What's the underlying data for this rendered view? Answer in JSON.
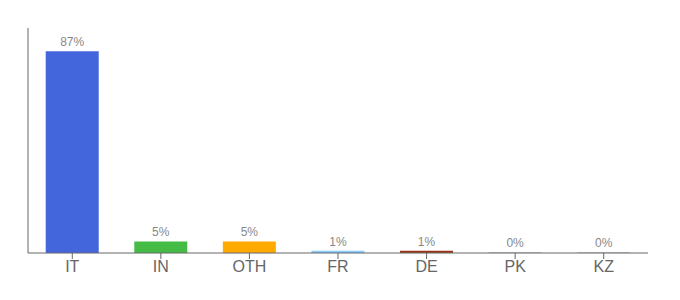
{
  "chart_data": {
    "type": "bar",
    "categories": [
      "IT",
      "IN",
      "OTH",
      "FR",
      "DE",
      "PK",
      "KZ"
    ],
    "values": [
      87,
      5,
      5,
      1,
      1,
      0.3,
      0.3
    ],
    "value_labels": [
      "87%",
      "5%",
      "5%",
      "1%",
      "1%",
      "0%",
      "0%"
    ],
    "data_labels": true,
    "colors": [
      "#4466dd",
      "#44bb44",
      "#ffaa00",
      "#88ccff",
      "#993311",
      "#bbbbbb",
      "#bbbbbb"
    ],
    "ylim": [
      0,
      97
    ],
    "grid": false,
    "tick_labels": "x"
  }
}
